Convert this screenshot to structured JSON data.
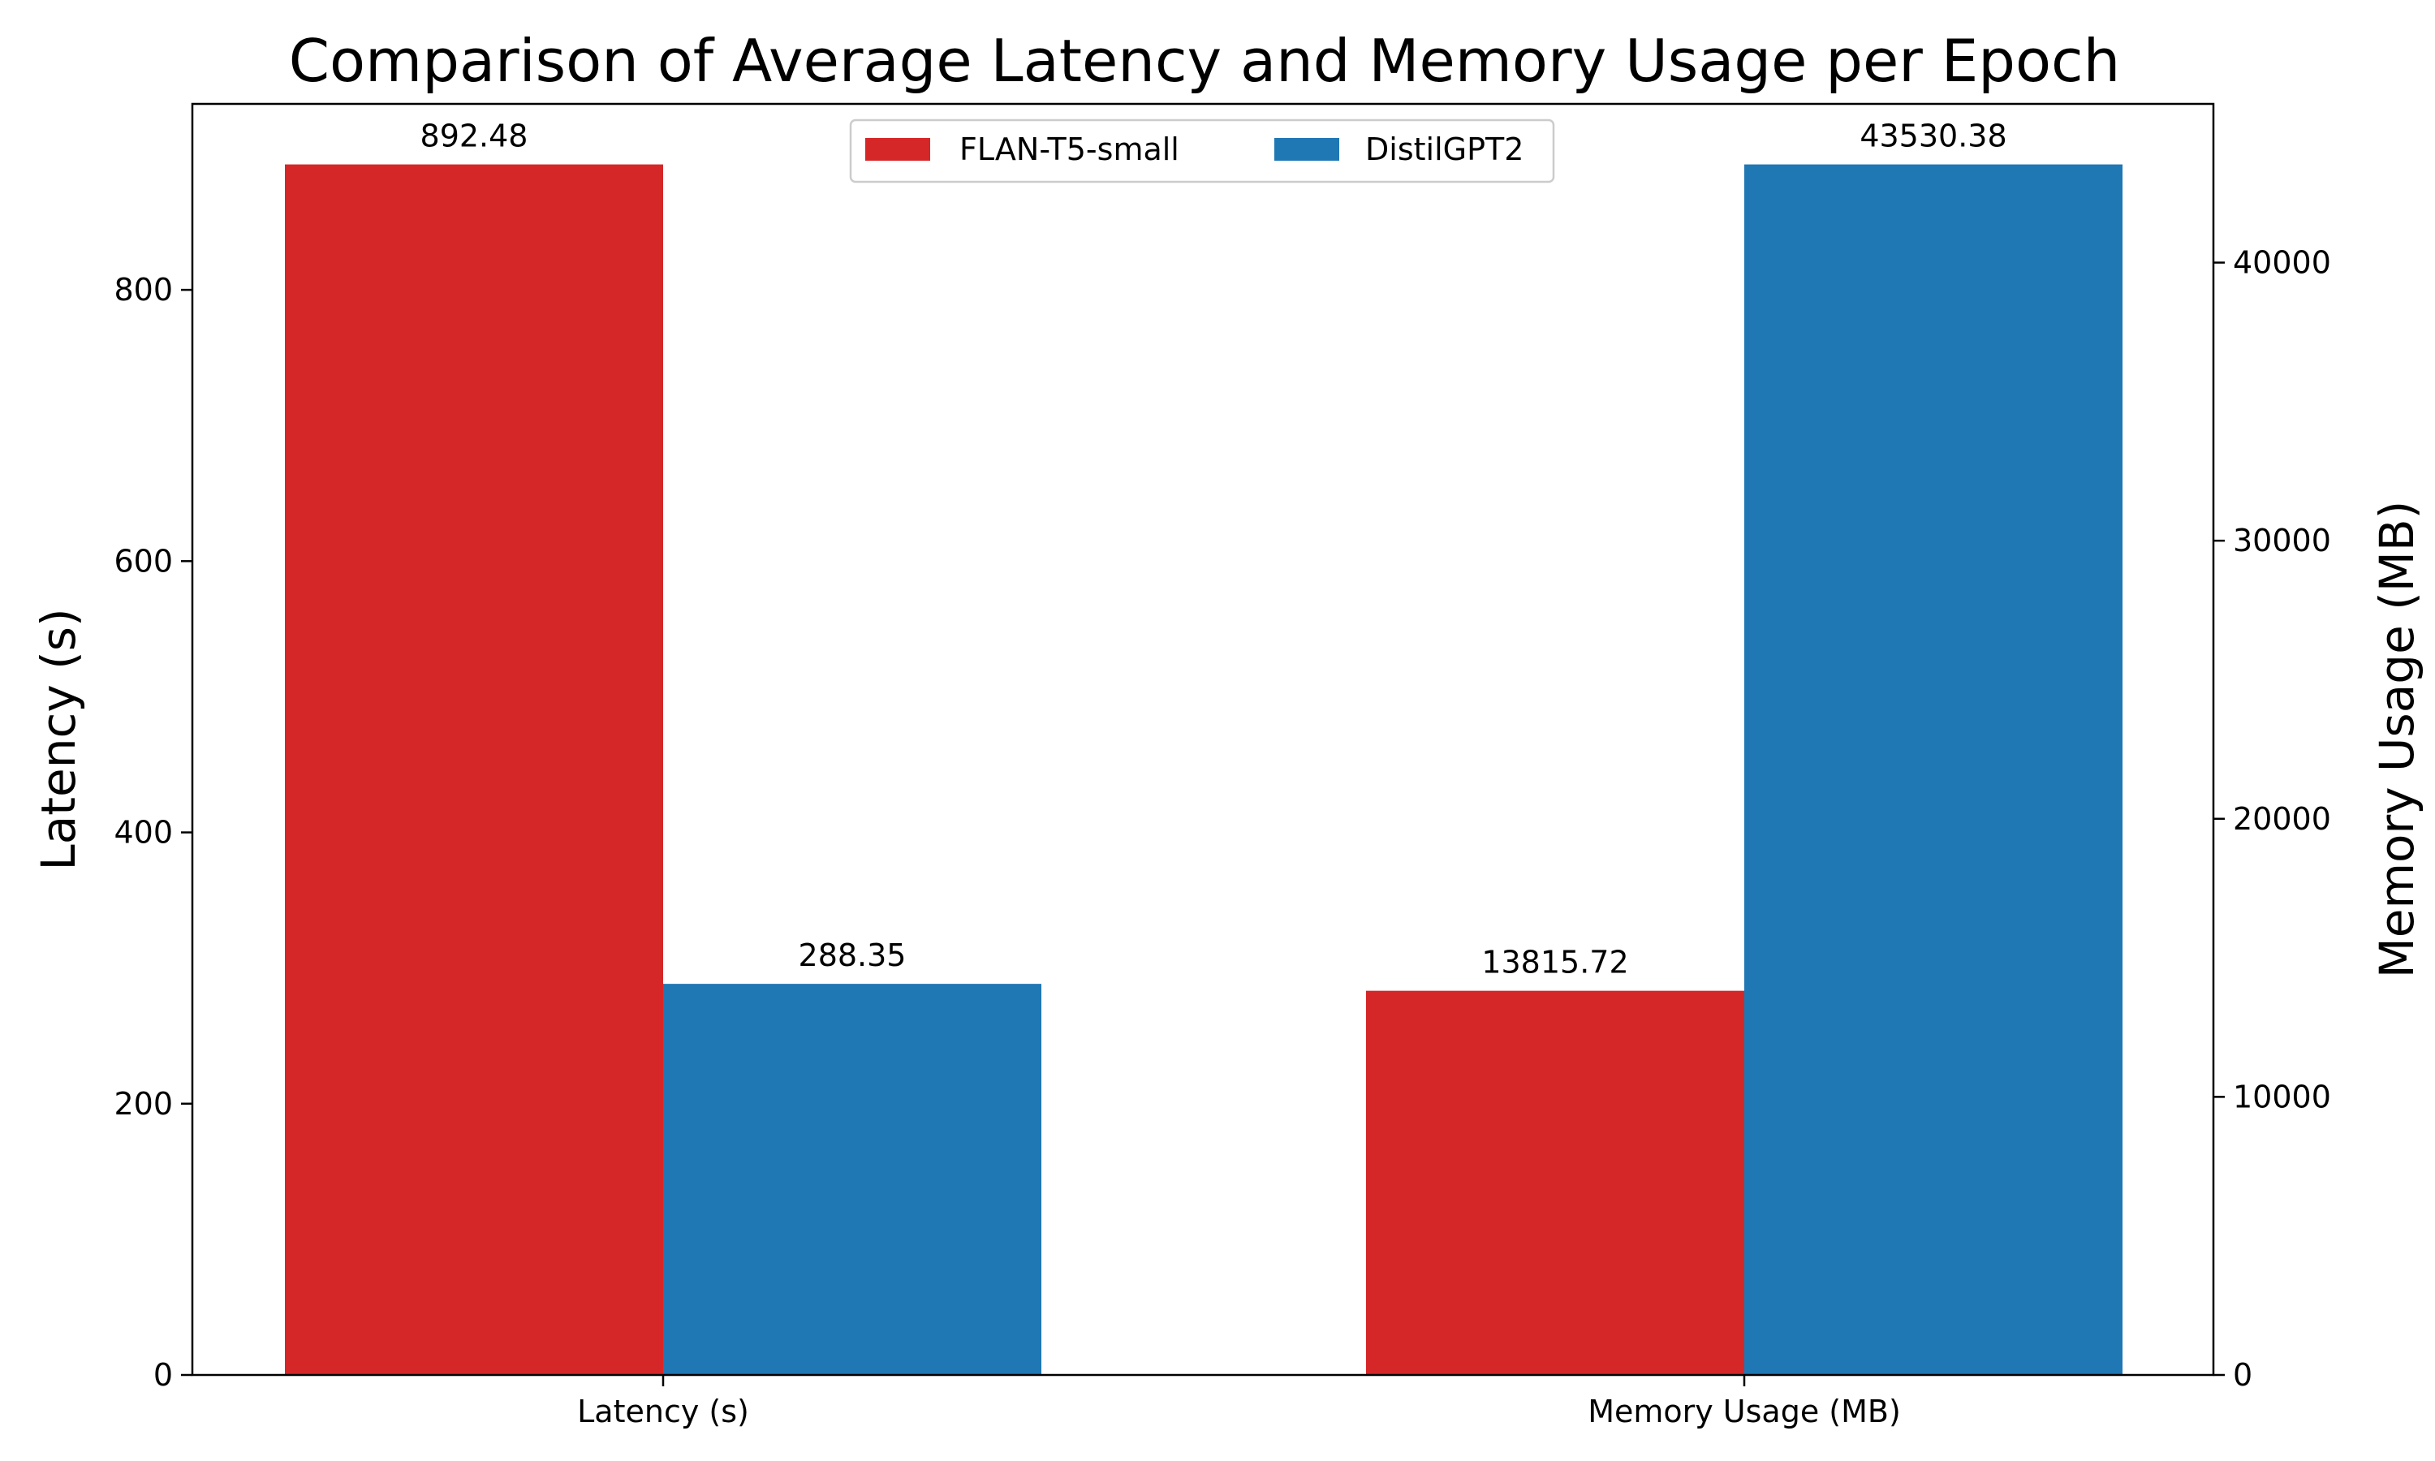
{
  "chart_data": {
    "type": "bar",
    "title": "Comparison of Average Latency and Memory Usage per Epoch",
    "categories": [
      "Latency (s)",
      "Memory Usage (MB)"
    ],
    "ylabel": "Latency (s)",
    "y2label": "Memory Usage (MB)",
    "ylim": [
      0,
      937.1
    ],
    "y2lim": [
      0,
      45707
    ],
    "yticks": [
      0,
      200,
      400,
      600,
      800
    ],
    "y2ticks": [
      0,
      10000,
      20000,
      30000,
      40000
    ],
    "grid": false,
    "legend_position": "top-center",
    "series": [
      {
        "name": "FLAN-T5-small",
        "color": "#d62728",
        "values": [
          892.48,
          13815.72
        ],
        "labels": [
          "892.48",
          "13815.72"
        ]
      },
      {
        "name": "DistilGPT2",
        "color": "#1f77b4",
        "values": [
          288.35,
          43530.38
        ],
        "labels": [
          "288.35",
          "43530.38"
        ]
      }
    ],
    "value_axis": [
      "left",
      "right"
    ]
  }
}
